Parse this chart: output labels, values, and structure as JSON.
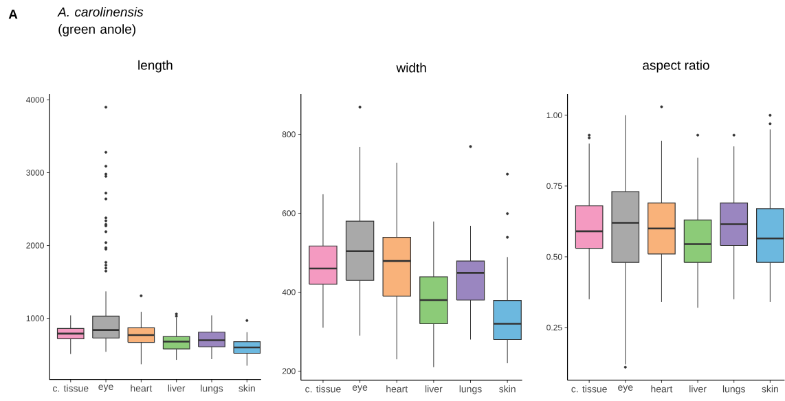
{
  "chart_data": [
    {
      "type": "box",
      "title": "length",
      "annotations": [
        "A",
        "*A. carolinensis* (green anole)"
      ],
      "categories": [
        "c. tissue",
        "eye",
        "heart",
        "liver",
        "lungs",
        "skin"
      ],
      "colors": [
        "#f49ac1",
        "#a9a9a9",
        "#f9b27a",
        "#8ccb78",
        "#9a86c0",
        "#6cb8df"
      ],
      "boxes": [
        {
          "low": 510,
          "q1": 720,
          "median": 790,
          "q3": 860,
          "high": 1040
        },
        {
          "low": 540,
          "q1": 730,
          "median": 840,
          "q3": 1030,
          "high": 1370,
          "outliers": [
            3900,
            3280,
            3090,
            2980,
            2950,
            2720,
            2640,
            2380,
            2340,
            2290,
            2270,
            2190,
            2040,
            1970,
            1950,
            1770,
            1730,
            1690,
            1650
          ]
        },
        {
          "low": 370,
          "q1": 670,
          "median": 770,
          "q3": 870,
          "high": 1090,
          "outliers": [
            1310
          ]
        },
        {
          "low": 430,
          "q1": 580,
          "median": 680,
          "q3": 750,
          "high": 1010,
          "outliers": [
            1060,
            1030
          ]
        },
        {
          "low": 440,
          "q1": 610,
          "median": 700,
          "q3": 810,
          "high": 1040
        },
        {
          "low": 350,
          "q1": 520,
          "median": 600,
          "q3": 680,
          "high": 810,
          "outliers": [
            970
          ]
        }
      ],
      "ylim": [
        160,
        4080
      ],
      "yticks": [
        1000,
        2000,
        3000,
        4000
      ],
      "marker": "circle"
    },
    {
      "type": "box",
      "title": "width",
      "categories": [
        "c. tissue",
        "eye",
        "heart",
        "liver",
        "lungs",
        "skin"
      ],
      "colors": [
        "#f49ac1",
        "#a9a9a9",
        "#f9b27a",
        "#8ccb78",
        "#9a86c0",
        "#6cb8df"
      ],
      "boxes": [
        {
          "low": 310,
          "q1": 420,
          "median": 460,
          "q3": 517,
          "high": 648
        },
        {
          "low": 290,
          "q1": 430,
          "median": 504,
          "q3": 580,
          "high": 768,
          "outliers": [
            869
          ]
        },
        {
          "low": 230,
          "q1": 390,
          "median": 479,
          "q3": 539,
          "high": 728
        },
        {
          "low": 210,
          "q1": 320,
          "median": 380,
          "q3": 439,
          "high": 579
        },
        {
          "low": 280,
          "q1": 380,
          "median": 449,
          "q3": 479,
          "high": 568,
          "outliers": [
            769
          ]
        },
        {
          "low": 220,
          "q1": 280,
          "median": 320,
          "q3": 379,
          "high": 489,
          "outliers": [
            699,
            599,
            539
          ]
        }
      ],
      "ylim": [
        177,
        902
      ],
      "yticks": [
        200,
        400,
        600,
        800
      ],
      "marker": "circle"
    },
    {
      "type": "box",
      "title": "aspect ratio",
      "categories": [
        "c. tissue",
        "eye",
        "heart",
        "liver",
        "lungs",
        "skin"
      ],
      "colors": [
        "#f49ac1",
        "#a9a9a9",
        "#f9b27a",
        "#8ccb78",
        "#9a86c0",
        "#6cb8df"
      ],
      "boxes": [
        {
          "low": 0.35,
          "q1": 0.53,
          "median": 0.59,
          "q3": 0.68,
          "high": 0.9,
          "outliers": [
            0.93,
            0.92
          ]
        },
        {
          "low": 0.12,
          "q1": 0.48,
          "median": 0.62,
          "q3": 0.73,
          "high": 1.0,
          "outliers": [
            0.11
          ]
        },
        {
          "low": 0.34,
          "q1": 0.51,
          "median": 0.6,
          "q3": 0.69,
          "high": 0.91,
          "outliers": [
            1.03
          ]
        },
        {
          "low": 0.32,
          "q1": 0.48,
          "median": 0.545,
          "q3": 0.63,
          "high": 0.85,
          "outliers": [
            0.93
          ]
        },
        {
          "low": 0.35,
          "q1": 0.54,
          "median": 0.615,
          "q3": 0.69,
          "high": 0.89,
          "outliers": [
            0.93
          ]
        },
        {
          "low": 0.34,
          "q1": 0.48,
          "median": 0.565,
          "q3": 0.67,
          "high": 0.95,
          "outliers": [
            1.0,
            0.97
          ]
        }
      ],
      "ylim": [
        0.064,
        1.075
      ],
      "yticks": [
        {
          "value": 0.25,
          "label": "0.25"
        },
        {
          "value": 0.5,
          "label": "0.50"
        },
        {
          "value": 0.75,
          "label": "0.75"
        },
        {
          "value": 1.0,
          "label": "1.00"
        }
      ],
      "marker": "circle"
    }
  ]
}
